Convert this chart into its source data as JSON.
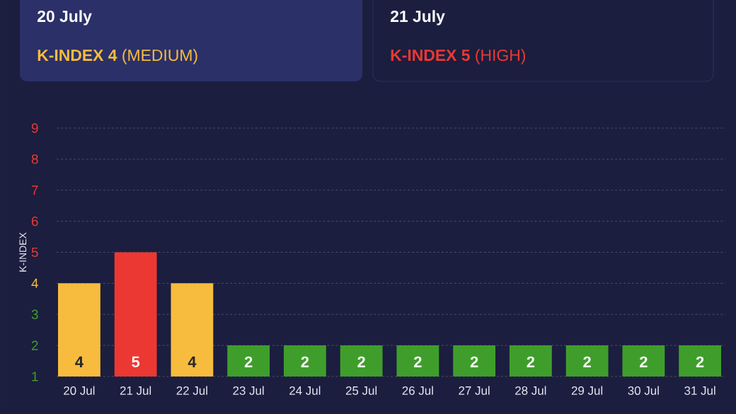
{
  "chart_data": {
    "type": "bar",
    "ylabel": "K-INDEX",
    "annotations": [
      "20 July",
      "**K-INDEX 4** (MEDIUM)",
      "21 July",
      "**K-INDEX 5** (HIGH)"
    ],
    "categories": [
      "20 Jul",
      "21 Jul",
      "22 Jul",
      "23 Jul",
      "24 Jul",
      "25 Jul",
      "26 Jul",
      "27 Jul",
      "28 Jul",
      "29 Jul",
      "30 Jul",
      "31 Jul"
    ],
    "values": [
      4,
      5,
      4,
      2,
      2,
      2,
      2,
      2,
      2,
      2,
      2,
      2
    ],
    "colors": [
      "#f7bc3e",
      "#ec3833",
      "#f7bc3e",
      "#3f9e2b",
      "#3f9e2b",
      "#3f9e2b",
      "#3f9e2b",
      "#3f9e2b",
      "#3f9e2b",
      "#3f9e2b",
      "#3f9e2b",
      "#3f9e2b"
    ],
    "ylim": [
      1,
      9
    ],
    "yticks": [
      1,
      2,
      3,
      4,
      5,
      6,
      7,
      8,
      9
    ],
    "grid": "y",
    "data_labels": true
  }
}
